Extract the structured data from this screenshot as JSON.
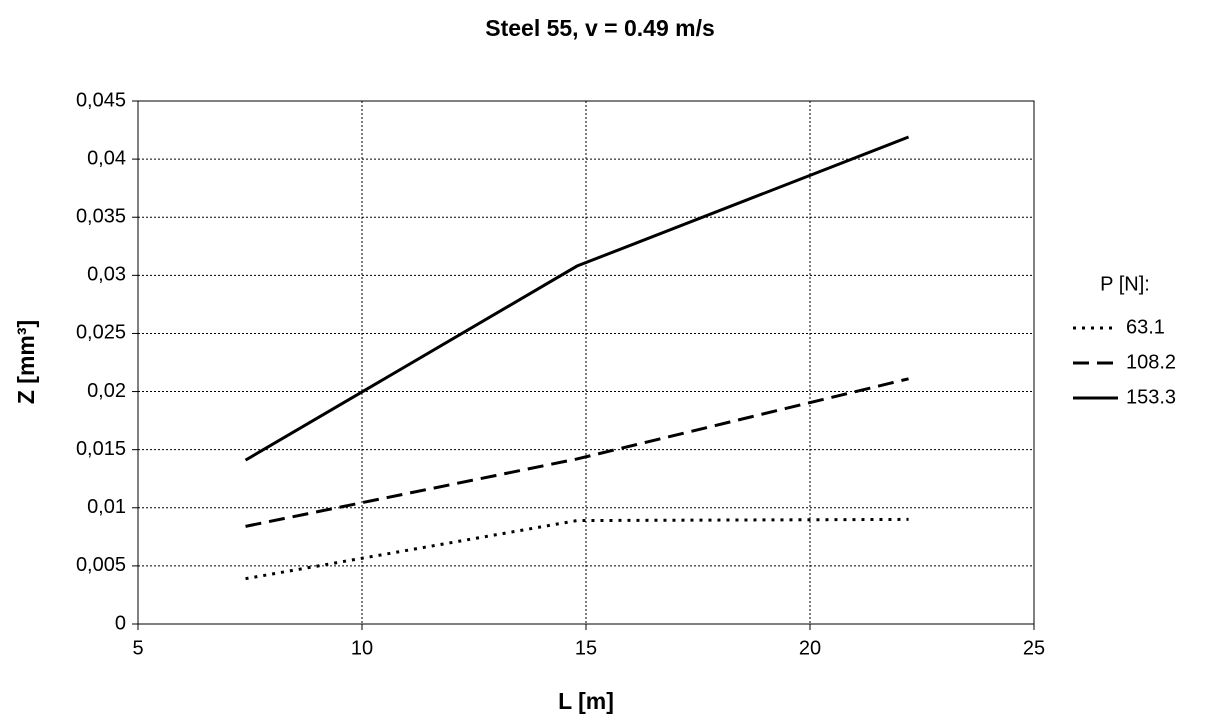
{
  "chart_data": {
    "type": "line",
    "title": "Steel 55, v = 0.49 m/s",
    "x_label": "L [m]",
    "y_label": "Z [mm³]",
    "legend_title": "P [N]:",
    "legend_position": "right",
    "x": [
      7.4,
      14.8,
      22.2
    ],
    "series": [
      {
        "name": "63.1",
        "color": "#000000",
        "line_style": "dotted",
        "values": [
          0.0039,
          0.0089,
          0.009
        ]
      },
      {
        "name": "108.2",
        "color": "#000000",
        "line_style": "dashed",
        "values": [
          0.0084,
          0.0142,
          0.0211
        ]
      },
      {
        "name": "153.3",
        "color": "#000000",
        "line_style": "solid",
        "values": [
          0.0141,
          0.0308,
          0.0419
        ]
      }
    ],
    "xlim": [
      5,
      25
    ],
    "xticks": [
      5,
      10,
      15,
      20,
      25
    ],
    "ylim": [
      0,
      0.045
    ],
    "yticks": [
      0,
      {
        "value": 0.005,
        "label": "0,005"
      },
      {
        "value": 0.01,
        "label": "0,01"
      },
      {
        "value": 0.015,
        "label": "0,015"
      },
      {
        "value": 0.02,
        "label": "0,02"
      },
      {
        "value": 0.025,
        "label": "0,025"
      },
      {
        "value": 0.03,
        "label": "0,03"
      },
      {
        "value": 0.035,
        "label": "0,035"
      },
      {
        "value": 0.04,
        "label": "0,04"
      },
      {
        "value": 0.045,
        "label": "0,045"
      }
    ],
    "grid": true
  }
}
